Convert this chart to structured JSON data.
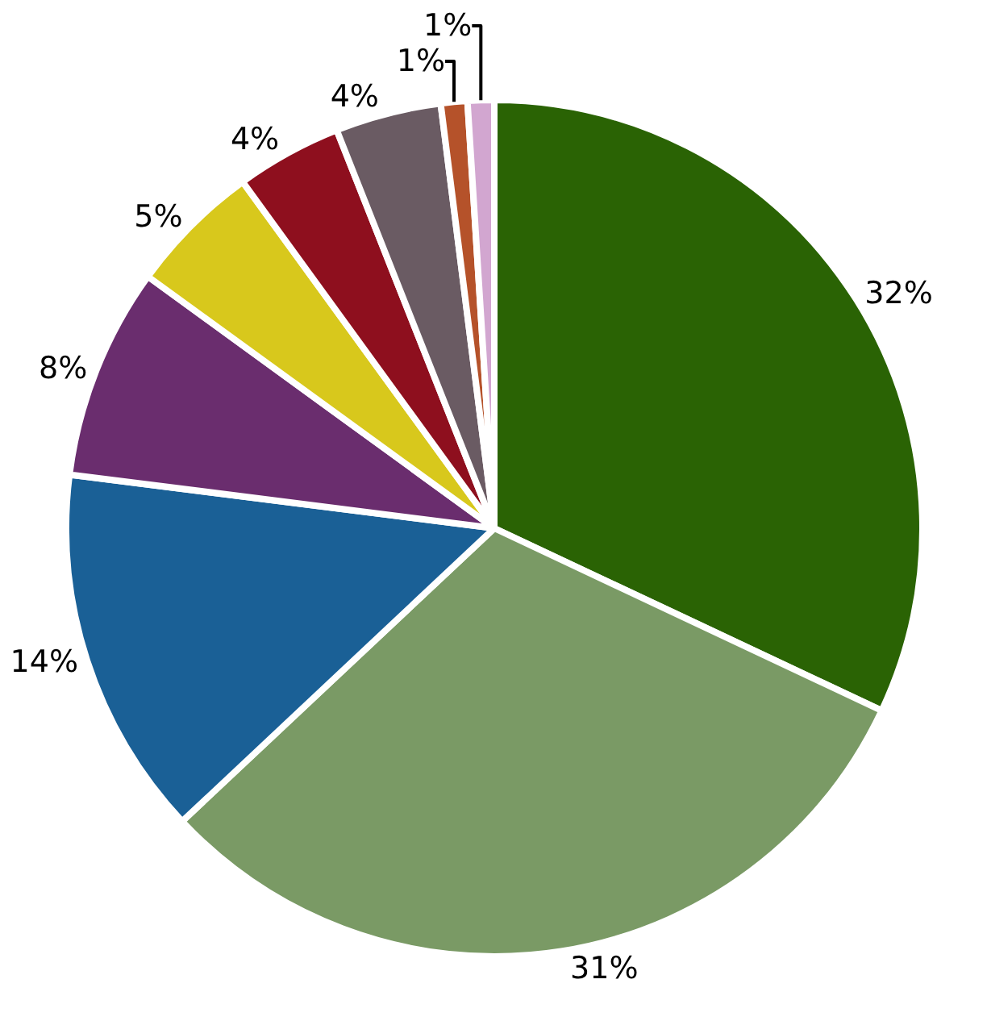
{
  "chart_data": {
    "type": "pie",
    "categories": [
      null,
      null,
      null,
      null,
      null,
      null,
      null,
      null,
      null
    ],
    "values": [
      32,
      31,
      14,
      8,
      5,
      4,
      4,
      1,
      1
    ],
    "value_labels": [
      "32%",
      "31%",
      "14%",
      "8%",
      "5%",
      "4%",
      "4%",
      "1%",
      "1%"
    ],
    "colors": [
      "#2a6304",
      "#7a9a65",
      "#1a6096",
      "#6a2d6e",
      "#d8c81c",
      "#8e0f1e",
      "#6a5b63",
      "#b5522a",
      "#d2a6d0"
    ],
    "legend": false
  }
}
